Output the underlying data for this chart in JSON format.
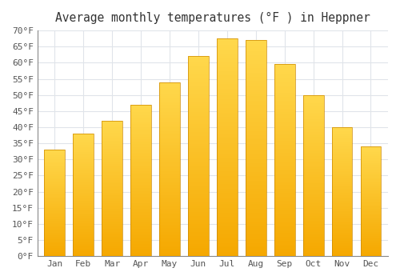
{
  "title": "Average monthly temperatures (°F ) in Heppner",
  "months": [
    "Jan",
    "Feb",
    "Mar",
    "Apr",
    "May",
    "Jun",
    "Jul",
    "Aug",
    "Sep",
    "Oct",
    "Nov",
    "Dec"
  ],
  "values": [
    33,
    38,
    42,
    47,
    54,
    62,
    67.5,
    67,
    59.5,
    50,
    40,
    34
  ],
  "bar_color_bottom": "#F5A800",
  "bar_color_top": "#FFD84C",
  "bar_edge_color": "#CC8800",
  "ylim": [
    0,
    70
  ],
  "yticks": [
    0,
    5,
    10,
    15,
    20,
    25,
    30,
    35,
    40,
    45,
    50,
    55,
    60,
    65,
    70
  ],
  "ytick_labels": [
    "0°F",
    "5°F",
    "10°F",
    "15°F",
    "20°F",
    "25°F",
    "30°F",
    "35°F",
    "40°F",
    "45°F",
    "50°F",
    "55°F",
    "60°F",
    "65°F",
    "70°F"
  ],
  "background_color": "#FFFFFF",
  "grid_color": "#E0E4EA",
  "title_fontsize": 10.5,
  "tick_fontsize": 8,
  "font_family": "monospace"
}
